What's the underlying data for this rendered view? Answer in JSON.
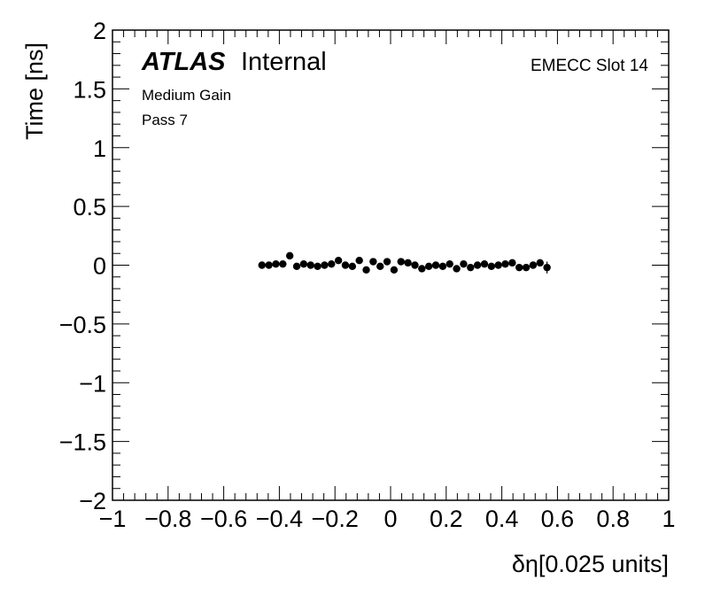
{
  "chart_data": {
    "type": "scatter",
    "title": "",
    "xlabel": "δη[0.025 units]",
    "ylabel": "Time [ns]",
    "xlim": [
      -1,
      1
    ],
    "ylim": [
      -2,
      2
    ],
    "grid": false,
    "x_ticks": [
      "−1",
      "−0.8",
      "−0.6",
      "−0.4",
      "−0.2",
      "0",
      "0.2",
      "0.4",
      "0.6",
      "0.8",
      "1"
    ],
    "y_ticks": [
      "−2",
      "−1.5",
      "−1",
      "−0.5",
      "0",
      "0.5",
      "1",
      "1.5",
      "2"
    ],
    "series": [
      {
        "marker_color": "#000000",
        "x": [
          -0.4625,
          -0.4375,
          -0.4125,
          -0.3875,
          -0.3625,
          -0.3375,
          -0.3125,
          -0.2875,
          -0.2625,
          -0.2375,
          -0.2125,
          -0.1875,
          -0.1625,
          -0.1375,
          -0.1125,
          -0.0875,
          -0.0625,
          -0.0375,
          -0.0125,
          0.0125,
          0.0375,
          0.0625,
          0.0875,
          0.1125,
          0.1375,
          0.1625,
          0.1875,
          0.2125,
          0.2375,
          0.2625,
          0.2875,
          0.3125,
          0.3375,
          0.3625,
          0.3875,
          0.4125,
          0.4375,
          0.4625,
          0.4875,
          0.5125,
          0.5375,
          0.5625
        ],
        "y": [
          0.0,
          0.0,
          0.01,
          0.01,
          0.08,
          -0.01,
          0.01,
          0.0,
          -0.01,
          0.0,
          0.01,
          0.04,
          0.0,
          -0.01,
          0.04,
          -0.04,
          0.03,
          -0.01,
          0.03,
          -0.04,
          0.03,
          0.02,
          0.0,
          -0.03,
          -0.01,
          0.0,
          -0.01,
          0.01,
          -0.03,
          0.01,
          -0.02,
          0.0,
          0.01,
          -0.01,
          0.0,
          0.01,
          0.02,
          -0.02,
          -0.02,
          0.0,
          0.02,
          -0.02
        ],
        "yerr": [
          0.03,
          0.03,
          0.02,
          0.02,
          0.03,
          0.02,
          0.02,
          0.02,
          0.02,
          0.02,
          0.02,
          0.02,
          0.02,
          0.02,
          0.02,
          0.02,
          0.02,
          0.02,
          0.02,
          0.02,
          0.02,
          0.02,
          0.02,
          0.02,
          0.02,
          0.02,
          0.02,
          0.02,
          0.02,
          0.02,
          0.02,
          0.02,
          0.02,
          0.02,
          0.02,
          0.02,
          0.02,
          0.02,
          0.02,
          0.02,
          0.02,
          0.05
        ]
      }
    ]
  },
  "labels": {
    "atlas": "ATLAS",
    "internal": "Internal",
    "gain": "Medium Gain",
    "pass": "Pass 7",
    "slot": "EMECC Slot 14"
  }
}
